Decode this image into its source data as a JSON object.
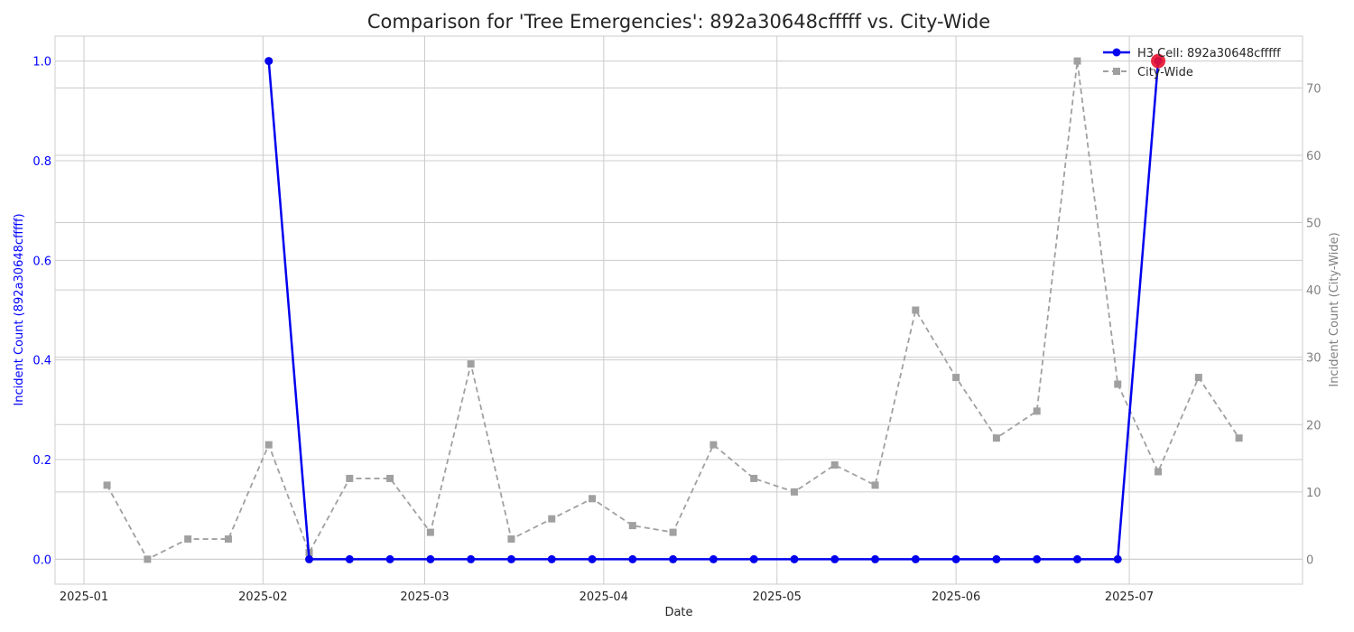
{
  "chart_data": {
    "type": "line",
    "title": "Comparison for 'Tree Emergencies': 892a30648cfffff vs. City-Wide",
    "xlabel": "Date",
    "ylabel_left": "Incident Count (892a30648cfffff)",
    "ylabel_right": "Incident Count (City-Wide)",
    "x_ticks": [
      "2025-01",
      "2025-02",
      "2025-03",
      "2025-04",
      "2025-05",
      "2025-06",
      "2025-07"
    ],
    "y_left_ticks": [
      "0.0",
      "0.2",
      "0.4",
      "0.6",
      "0.8",
      "1.0"
    ],
    "y_right_ticks": [
      "0",
      "10",
      "20",
      "30",
      "40",
      "50",
      "60",
      "70"
    ],
    "xlim": [
      "2024-12-27",
      "2025-07-31"
    ],
    "ylim_left": [
      -0.05,
      1.05
    ],
    "ylim_right": [
      -3.7,
      77.7
    ],
    "grid": true,
    "legend_position": "top-right",
    "colors": {
      "h3": "#0000ee",
      "city": "#a0a0a0",
      "highlight": "#e8112d"
    },
    "series": [
      {
        "name": "H3 Cell: 892a30648cfffff",
        "axis": "left",
        "style": "solid-circle",
        "x": [
          "2025-02-02",
          "2025-02-09",
          "2025-02-16",
          "2025-02-23",
          "2025-03-02",
          "2025-03-09",
          "2025-03-16",
          "2025-03-23",
          "2025-03-30",
          "2025-04-06",
          "2025-04-13",
          "2025-04-20",
          "2025-04-27",
          "2025-05-04",
          "2025-05-11",
          "2025-05-18",
          "2025-05-25",
          "2025-06-01",
          "2025-06-08",
          "2025-06-15",
          "2025-06-22",
          "2025-06-29",
          "2025-07-06"
        ],
        "values": [
          1,
          0,
          0,
          0,
          0,
          0,
          0,
          0,
          0,
          0,
          0,
          0,
          0,
          0,
          0,
          0,
          0,
          0,
          0,
          0,
          0,
          0,
          1
        ]
      },
      {
        "name": "City-Wide",
        "axis": "right",
        "style": "dashed-square",
        "x": [
          "2025-01-05",
          "2025-01-12",
          "2025-01-19",
          "2025-01-26",
          "2025-02-02",
          "2025-02-09",
          "2025-02-16",
          "2025-02-23",
          "2025-03-02",
          "2025-03-09",
          "2025-03-16",
          "2025-03-23",
          "2025-03-30",
          "2025-04-06",
          "2025-04-13",
          "2025-04-20",
          "2025-04-27",
          "2025-05-04",
          "2025-05-11",
          "2025-05-18",
          "2025-05-25",
          "2025-06-01",
          "2025-06-08",
          "2025-06-15",
          "2025-06-22",
          "2025-06-29",
          "2025-07-06",
          "2025-07-13",
          "2025-07-20"
        ],
        "values": [
          11,
          0,
          3,
          3,
          17,
          1,
          12,
          12,
          4,
          29,
          3,
          6,
          9,
          5,
          4,
          17,
          12,
          10,
          14,
          11,
          37,
          27,
          18,
          22,
          74,
          26,
          13,
          27,
          18
        ]
      }
    ],
    "highlight_point": {
      "x": "2025-07-06",
      "value": 1,
      "axis": "left"
    }
  }
}
